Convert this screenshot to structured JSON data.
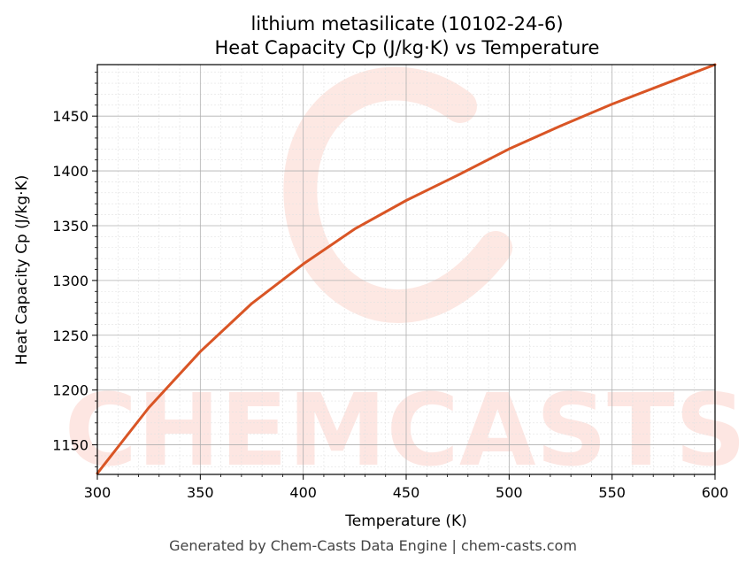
{
  "chart_data": {
    "type": "line",
    "title_lines": [
      "lithium metasilicate (10102-24-6)",
      "Heat Capacity Cp (J/kg·K) vs Temperature"
    ],
    "xlabel": "Temperature (K)",
    "ylabel": "Heat Capacity Cp (J/kg·K)",
    "xlim": [
      300,
      600
    ],
    "ylim": [
      1123,
      1497
    ],
    "x_ticks": [
      300,
      350,
      400,
      450,
      500,
      550,
      600
    ],
    "y_ticks": [
      1150,
      1200,
      1250,
      1300,
      1350,
      1400,
      1450
    ],
    "grid": true,
    "series": [
      {
        "color": "#d95525",
        "x": [
          300,
          325,
          350,
          375,
          400,
          425,
          450,
          475,
          500,
          525,
          550,
          575,
          600
        ],
        "y": [
          1124,
          1184,
          1235,
          1279,
          1315,
          1347,
          1373,
          1396,
          1420,
          1441,
          1461,
          1479,
          1497
        ]
      }
    ],
    "watermark": "CHEMCASTS"
  },
  "footer": "Generated by Chem-Casts Data Engine | chem-casts.com"
}
